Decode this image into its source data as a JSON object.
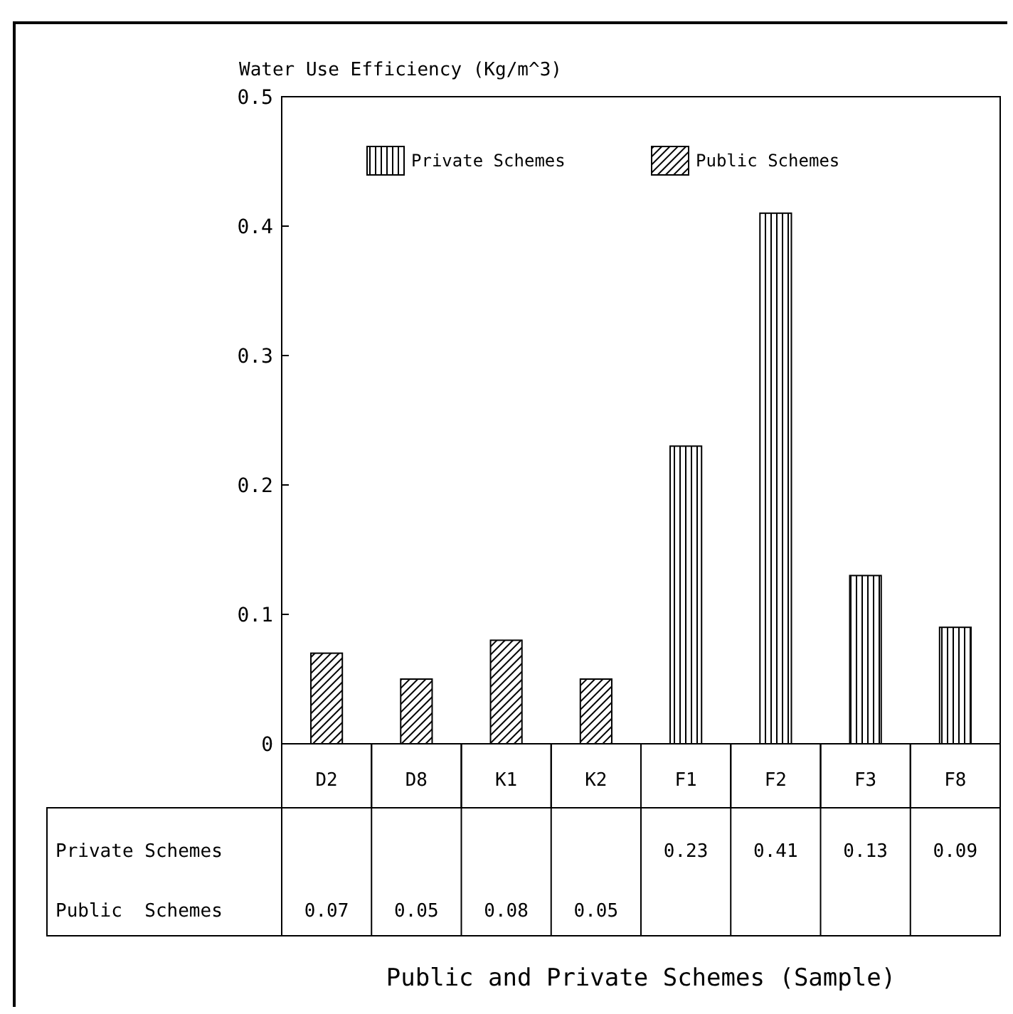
{
  "chart_data": {
    "type": "bar",
    "title": "Public and Private Schemes (Sample)",
    "ylabel": "Water Use Efficiency (Kg/m^3)",
    "categories": [
      "D2",
      "D8",
      "K1",
      "K2",
      "F1",
      "F2",
      "F3",
      "F8"
    ],
    "series": [
      {
        "name": "Private Schemes",
        "color": "#000000",
        "values": [
          null,
          null,
          null,
          null,
          0.23,
          0.41,
          0.13,
          0.09
        ]
      },
      {
        "name": "Public  Schemes",
        "color": "#000000",
        "values": [
          0.07,
          0.05,
          0.08,
          0.05,
          null,
          null,
          null,
          null
        ]
      }
    ],
    "stacked": true,
    "ylim": [
      0,
      0.5
    ],
    "yticks": [
      {
        "value": 0,
        "label": "0"
      },
      0.1,
      0.2,
      0.3,
      0.4,
      0.5
    ],
    "grid": false,
    "legend": "top",
    "data_labels": true
  }
}
